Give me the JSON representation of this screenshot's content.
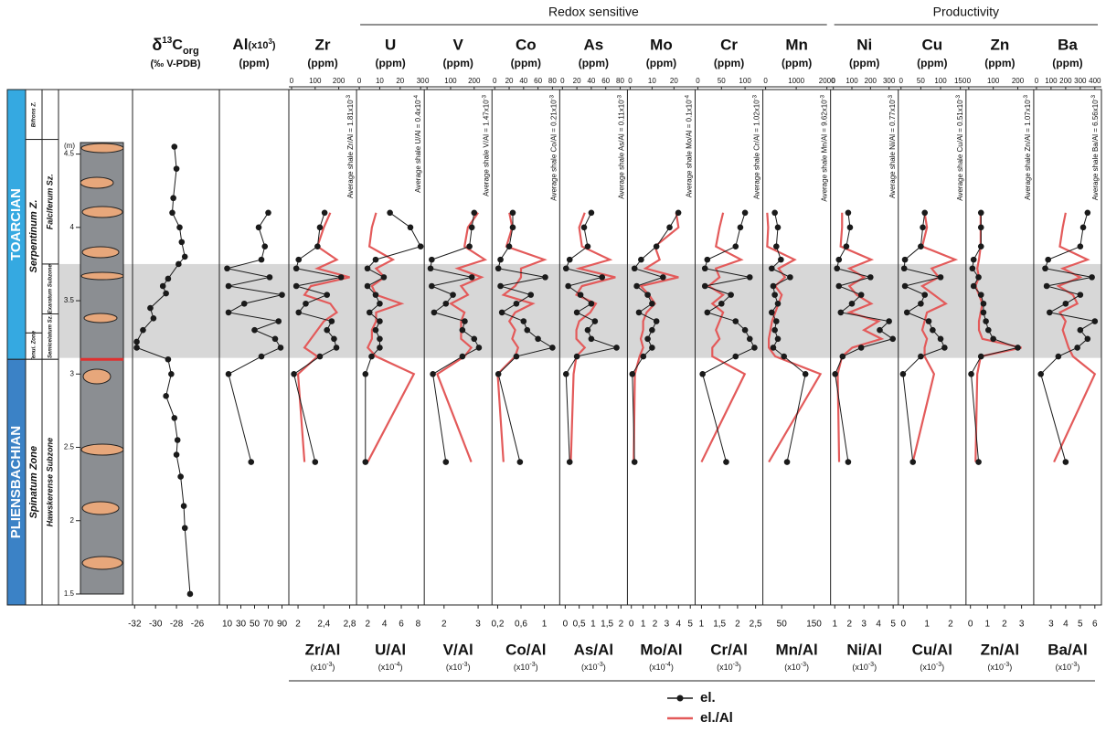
{
  "chart_data": {
    "type": "stratigraphic-profiles",
    "y_label": "(m)",
    "ylim": [
      1.425,
      4.94
    ],
    "yticks": [
      1.5,
      2,
      2.5,
      3,
      3.5,
      4,
      4.5
    ],
    "highlight_band": [
      3.11,
      3.75
    ],
    "stages": [
      {
        "name": "TOARCIAN",
        "range": [
          3.1,
          4.94
        ],
        "color": "#35a9e1"
      },
      {
        "name": "PLIENSBACHIAN",
        "range": [
          1.425,
          3.1
        ],
        "color": "#3b82c6"
      }
    ],
    "zones": [
      {
        "name": "Bifrons Z.",
        "range": [
          4.6,
          4.94
        ]
      },
      {
        "name": "Serpentinum Z.",
        "range": [
          3.28,
          4.6
        ]
      },
      {
        "name": "Tenui. Zone",
        "range": [
          3.1,
          3.28
        ]
      },
      {
        "name": "Spinatum Zone",
        "range": [
          1.425,
          3.1
        ]
      }
    ],
    "subzones": [
      {
        "name": "Falciferum Sz.",
        "range": [
          3.75,
          4.6
        ]
      },
      {
        "name": "Exaratum Subzone",
        "range": [
          3.41,
          3.75
        ]
      },
      {
        "name": "Semicelatum Sz.",
        "range": [
          3.1,
          3.41
        ]
      },
      {
        "name": "Hawskerense Subzone",
        "range": [
          1.425,
          3.1
        ]
      }
    ],
    "d13c": {
      "title_parts": [
        "δ",
        "13",
        "C",
        "org"
      ],
      "unit": "(‰ V-PDB)",
      "xlim": [
        -32.2,
        -23.9
      ],
      "xticks": [
        -32,
        -30,
        -28,
        -26
      ],
      "depths": [
        4.55,
        4.4,
        4.2,
        4.1,
        4.0,
        3.9,
        3.8,
        3.75,
        3.65,
        3.6,
        3.55,
        3.45,
        3.38,
        3.3,
        3.22,
        3.18,
        3.1,
        3.0,
        2.85,
        2.7,
        2.55,
        2.45,
        2.3,
        2.1,
        1.95,
        1.5
      ],
      "values": [
        -28.2,
        -28.0,
        -28.3,
        -28.4,
        -27.7,
        -27.5,
        -27.2,
        -27.8,
        -28.8,
        -29.3,
        -29.0,
        -30.5,
        -30.2,
        -31.2,
        -31.8,
        -31.8,
        -28.8,
        -28.5,
        -29.0,
        -28.2,
        -27.9,
        -28.0,
        -27.6,
        -27.3,
        -27.2,
        -26.7
      ]
    },
    "depths": [
      4.1,
      4.0,
      3.87,
      3.78,
      3.72,
      3.66,
      3.6,
      3.54,
      3.48,
      3.42,
      3.36,
      3.3,
      3.24,
      3.18,
      3.12,
      3.0,
      2.4
    ],
    "al": {
      "title_parts": [
        "Al",
        "(x10",
        "3",
        ")"
      ],
      "unit": "(ppm)",
      "xlim": [
        0,
        100
      ],
      "xticks": [
        10,
        30,
        50,
        70,
        90
      ],
      "values": [
        70,
        56,
        65,
        60,
        10,
        72,
        12,
        90,
        35,
        12,
        85,
        50,
        80,
        88,
        60,
        12,
        45
      ]
    },
    "groups": [
      {
        "title": "Redox sensitive",
        "members": [
          "U",
          "V",
          "Co",
          "As",
          "Mo",
          "Cr",
          "Mn"
        ]
      },
      {
        "title": "Productivity",
        "members": [
          "Ni",
          "Cu",
          "Zn",
          "Ba"
        ]
      }
    ],
    "elements": [
      {
        "name": "Zr",
        "unit": "(ppm)",
        "xlim": [
          0,
          260
        ],
        "xticks": [
          0,
          100,
          200
        ],
        "values": [
          140,
          120,
          110,
          30,
          20,
          210,
          20,
          150,
          60,
          30,
          170,
          150,
          180,
          190,
          120,
          10,
          100
        ],
        "avg_shale_parts": [
          "Average shale Zr/Al = 1.81x10",
          "-3"
        ],
        "ratio": {
          "name": "Zr/Al",
          "unit_parts": [
            "(x10",
            "-3",
            ")"
          ],
          "xlim": [
            1.9,
            2.85
          ],
          "xticks": [
            2,
            {
              "value": 2.4,
              "label": "2,4"
            },
            {
              "value": 2.8,
              "label": "2,8"
            }
          ],
          "values": [
            2.5,
            2.4,
            2.3,
            2.6,
            2.3,
            2.8,
            2.2,
            2.1,
            2.5,
            2.6,
            2.4,
            2.3,
            2.2,
            2.1,
            2.3,
            2.0,
            2.1
          ]
        }
      },
      {
        "name": "U",
        "unit": "(ppm)",
        "xlim": [
          0,
          30
        ],
        "xticks": [
          0,
          10,
          20,
          30
        ],
        "values": [
          15,
          25,
          30,
          8,
          4,
          12,
          4,
          8,
          10,
          5,
          10,
          8,
          10,
          10,
          6,
          3,
          3
        ],
        "avg_shale_parts": [
          "Average shale U/Al = 0.4x10",
          "-4"
        ],
        "ratio": {
          "name": "U/Al",
          "unit_parts": [
            "(x10",
            "-4",
            ")"
          ],
          "xlim": [
            1,
            8.3
          ],
          "xticks": [
            2,
            4,
            6,
            8
          ],
          "values": [
            3,
            2.5,
            2.2,
            5,
            3,
            4,
            2.5,
            3,
            6,
            3,
            3,
            2.5,
            2.5,
            2,
            3,
            7.5,
            2
          ]
        }
      },
      {
        "name": "V",
        "unit": "(ppm)",
        "xlim": [
          0,
          260
        ],
        "xticks": [
          0,
          100,
          200
        ],
        "values": [
          200,
          190,
          180,
          20,
          15,
          190,
          20,
          110,
          80,
          30,
          160,
          150,
          200,
          220,
          150,
          25,
          80
        ],
        "avg_shale_parts": [
          "Average shale V/Al = 1.47x10",
          "-3"
        ],
        "ratio": {
          "name": "V/Al",
          "unit_parts": [
            "(x10",
            "-3",
            ")"
          ],
          "xlim": [
            1.5,
            3.3
          ],
          "xticks": [
            2,
            3
          ],
          "values": [
            3,
            2.7,
            2.6,
            3.2,
            2.4,
            3.1,
            2.5,
            2.7,
            2.2,
            2.6,
            2.5,
            2.5,
            2.5,
            2.8,
            2.6,
            1.8,
            2.8
          ]
        }
      },
      {
        "name": "Co",
        "unit": "(ppm)",
        "xlim": [
          0,
          85
        ],
        "xticks": [
          0,
          20,
          40,
          60,
          80
        ],
        "values": [
          25,
          25,
          20,
          8,
          5,
          70,
          8,
          50,
          30,
          10,
          40,
          45,
          60,
          80,
          30,
          5,
          35
        ],
        "avg_shale_parts": [
          "Average shale Co/Al = 0.21x10",
          "-3"
        ],
        "ratio": {
          "name": "Co/Al",
          "unit_parts": [
            "(x10",
            "-3",
            ")"
          ],
          "xlim": [
            0.15,
            1.2
          ],
          "xticks": [
            {
              "value": 0.2,
              "label": "0,2"
            },
            {
              "value": 0.6,
              "label": "0,6"
            },
            1
          ],
          "values": [
            0.4,
            0.45,
            0.35,
            1.0,
            0.6,
            0.6,
            0.5,
            0.3,
            0.8,
            0.5,
            0.4,
            0.5,
            0.45,
            0.55,
            0.5,
            0.2,
            0.3
          ]
        }
      },
      {
        "name": "As",
        "unit": "(ppm)",
        "xlim": [
          0,
          85
        ],
        "xticks": [
          0,
          20,
          40,
          60,
          80
        ],
        "values": [
          40,
          30,
          35,
          10,
          5,
          55,
          8,
          25,
          40,
          20,
          45,
          35,
          40,
          75,
          20,
          5,
          10
        ],
        "avg_shale_parts": [
          "Average shale As/Al = 0.11x10",
          "-3"
        ],
        "ratio": {
          "name": "As/Al",
          "unit_parts": [
            "(x10",
            "-3",
            ")"
          ],
          "xlim": [
            -0.1,
            2.1
          ],
          "xticks": [
            0,
            {
              "value": 0.5,
              "label": "0,5"
            },
            1,
            {
              "value": 1.5,
              "label": "1,5"
            },
            2
          ],
          "values": [
            0.7,
            0.5,
            0.6,
            1.6,
            0.5,
            1.8,
            0.6,
            0.4,
            1.1,
            0.9,
            0.5,
            0.4,
            0.4,
            0.7,
            0.4,
            0.3,
            0.2
          ]
        }
      },
      {
        "name": "Mo",
        "unit": "(ppm)",
        "xlim": [
          0,
          28
        ],
        "xticks": [
          0,
          10,
          20
        ],
        "values": [
          22,
          18,
          12,
          5,
          2,
          15,
          3,
          8,
          10,
          4,
          12,
          10,
          8,
          10,
          6,
          1,
          2
        ],
        "avg_shale_parts": [
          "Average shale Mo/Al = 0.1x10",
          "-4"
        ],
        "ratio": {
          "name": "Mo/Al",
          "unit_parts": [
            "(x10",
            "-4",
            ")"
          ],
          "xlim": [
            -0.1,
            5.1
          ],
          "xticks": [
            0,
            1,
            2,
            3,
            4,
            5
          ],
          "values": [
            3.8,
            4,
            2,
            2.4,
            1.2,
            4,
            0.8,
            1.5,
            2,
            1.3,
            1,
            1,
            0.8,
            1,
            0.7,
            0.3,
            0.2
          ]
        }
      },
      {
        "name": "Cr",
        "unit": "(ppm)",
        "xlim": [
          0,
          130
        ],
        "xticks": [
          0,
          50,
          100
        ],
        "values": [
          100,
          90,
          80,
          20,
          15,
          110,
          15,
          70,
          50,
          20,
          80,
          100,
          110,
          120,
          80,
          10,
          60
        ],
        "avg_shale_parts": [
          "Average shale Cr/Al = 1.02x10",
          "-3"
        ],
        "ratio": {
          "name": "Cr/Al",
          "unit_parts": [
            "(x10",
            "-3",
            ")"
          ],
          "xlim": [
            0.9,
            2.6
          ],
          "xticks": [
            1,
            {
              "value": 1.5,
              "label": "1,5"
            },
            2,
            {
              "value": 2.5,
              "label": "2,5"
            }
          ],
          "values": [
            1.6,
            1.5,
            1.4,
            2.1,
            1.4,
            1.5,
            1.2,
            1.6,
            1.3,
            1.6,
            1.5,
            1.4,
            1.5,
            1.3,
            1.3,
            2.2,
            1.0
          ]
        }
      },
      {
        "name": "Mn",
        "unit": "(ppm)",
        "xlim": [
          0,
          2000
        ],
        "xticks": [
          0,
          1000,
          2000
        ],
        "values": [
          300,
          400,
          350,
          500,
          200,
          800,
          250,
          300,
          400,
          200,
          350,
          300,
          400,
          250,
          600,
          1300,
          700
        ],
        "avg_shale_parts": [
          "Average shale Mn/Al = 9.62x10",
          "-3"
        ],
        "ratio": {
          "name": "Mn/Al",
          "unit_parts": [
            "(x10",
            "-3",
            ")"
          ],
          "xlim": [
            0,
            190
          ],
          "xticks": [
            50,
            150
          ],
          "values": [
            5,
            8,
            5,
            90,
            40,
            60,
            30,
            50,
            40,
            30,
            20,
            15,
            10,
            10,
            30,
            170,
            10
          ]
        }
      },
      {
        "name": "Ni",
        "unit": "(ppm)",
        "xlim": [
          0,
          330
        ],
        "xticks": [
          0,
          100,
          200,
          300
        ],
        "values": [
          80,
          90,
          70,
          30,
          20,
          200,
          30,
          150,
          100,
          40,
          300,
          250,
          320,
          150,
          50,
          10,
          80
        ],
        "avg_shale_parts": [
          "Average shale Ni/Al = 0.77x10",
          "-3"
        ],
        "ratio": {
          "name": "Ni/Al",
          "unit_parts": [
            "(x10",
            "-3",
            ")"
          ],
          "xlim": [
            0.9,
            5.1
          ],
          "xticks": [
            1,
            2,
            3,
            4,
            5
          ],
          "values": [
            1.5,
            1.5,
            1.4,
            3.5,
            2,
            3,
            2,
            2.5,
            3.5,
            2,
            4,
            3,
            4.2,
            2.2,
            1.5,
            1.2,
            1.3
          ]
        }
      },
      {
        "name": "Cu",
        "unit": "(ppm)",
        "xlim": [
          0,
          155
        ],
        "xticks": [
          0,
          50,
          100,
          150
        ],
        "values": [
          60,
          55,
          50,
          10,
          8,
          100,
          10,
          60,
          50,
          15,
          70,
          80,
          100,
          110,
          50,
          5,
          30
        ],
        "avg_shale_parts": [
          "Average shale Cu/Al = 0.51x10",
          "-3"
        ],
        "ratio": {
          "name": "Cu/Al",
          "unit_parts": [
            "(x10",
            "-3",
            ")"
          ],
          "xlim": [
            -0.1,
            2.5
          ],
          "xticks": [
            0,
            1,
            2
          ],
          "values": [
            0.9,
            1,
            0.8,
            2.2,
            1.2,
            1.5,
            0.8,
            1.3,
            1.8,
            1,
            0.9,
            0.8,
            1,
            0.9,
            0.9,
            1.3,
            0.4
          ]
        }
      },
      {
        "name": "Zn",
        "unit": "(ppm)",
        "xlim": [
          0,
          250
        ],
        "xticks": [
          0,
          100,
          200
        ],
        "values": [
          50,
          50,
          50,
          20,
          15,
          40,
          20,
          50,
          60,
          60,
          70,
          80,
          100,
          200,
          50,
          10,
          40
        ],
        "avg_shale_parts": [
          "Average shale Zn/Al = 1.07x10",
          "-3"
        ],
        "ratio": {
          "name": "Zn/Al",
          "unit_parts": [
            "(x10",
            "-3",
            ")"
          ],
          "xlim": [
            -0.1,
            3.5
          ],
          "xticks": [
            0,
            1,
            2,
            3
          ],
          "values": [
            0.6,
            0.6,
            0.6,
            0.5,
            0.4,
            0.5,
            0.3,
            0.5,
            0.7,
            0.6,
            0.5,
            0.5,
            0.7,
            3.0,
            0.6,
            0.4,
            0.3
          ]
        }
      },
      {
        "name": "Ba",
        "unit": "(ppm)",
        "xlim": [
          0,
          420
        ],
        "xticks": [
          0,
          100,
          200,
          300,
          400
        ],
        "values": [
          350,
          320,
          300,
          80,
          60,
          380,
          70,
          300,
          200,
          90,
          400,
          300,
          350,
          280,
          150,
          30,
          200
        ],
        "avg_shale_parts": [
          "Average shale Ba/Al = 6.56x10",
          "-3"
        ],
        "ratio": {
          "name": "Ba/Al",
          "unit_parts": [
            "(x10",
            "-3",
            ")"
          ],
          "xlim": [
            2,
            6.2
          ],
          "xticks": [
            3,
            4,
            5,
            6
          ],
          "values": [
            4,
            3.8,
            3.6,
            5.5,
            3.8,
            5,
            3.5,
            4.5,
            4.8,
            3.6,
            4,
            3.8,
            4,
            4.2,
            4.5,
            6,
            3.2
          ]
        }
      }
    ],
    "legend": {
      "position": "bottom-center",
      "series": [
        {
          "name": "el.",
          "color": "#1a1a1a"
        },
        {
          "name": "el./Al",
          "color": "#e35a5a"
        }
      ]
    }
  }
}
